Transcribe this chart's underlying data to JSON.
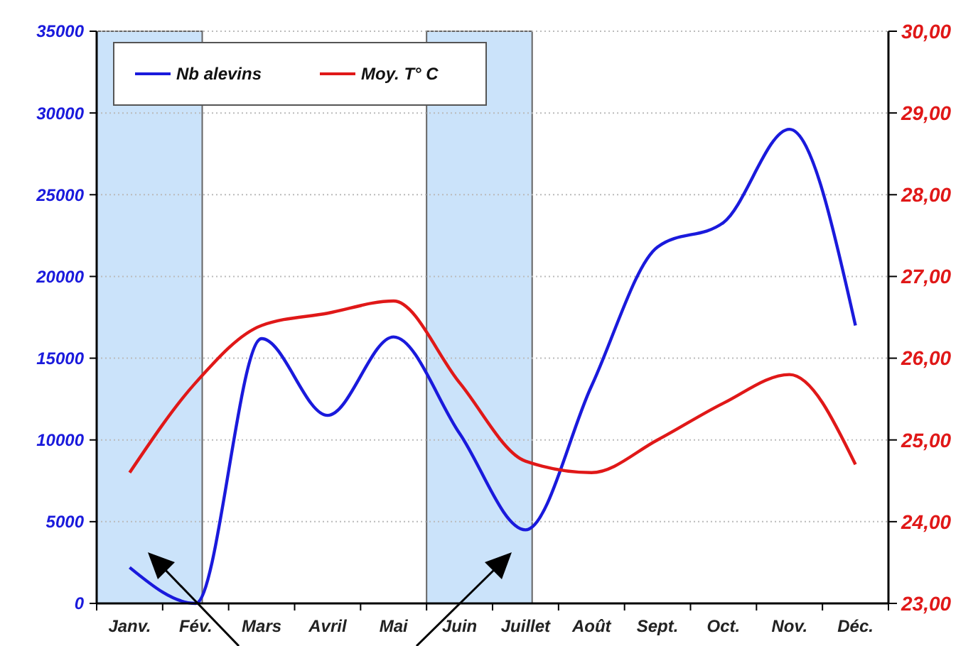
{
  "chart_data": {
    "type": "line",
    "categories": [
      "Janv.",
      "Fév.",
      "Mars",
      "Avril",
      "Mai",
      "Juin",
      "Juillet",
      "Août",
      "Sept.",
      "Oct.",
      "Nov.",
      "Déc."
    ],
    "series": [
      {
        "name": "Nb alevins",
        "color": "#1a1adc",
        "values": [
          2200,
          0,
          16200,
          11500,
          16300,
          10400,
          4500,
          13300,
          21800,
          23300,
          29000,
          17000
        ]
      },
      {
        "name": "Moy. T° C",
        "color": "#e01818",
        "axis": "y2",
        "values": [
          24.6,
          25.7,
          26.4,
          26.55,
          26.7,
          25.7,
          24.74,
          24.6,
          25.0,
          25.45,
          25.8,
          24.7
        ]
      }
    ],
    "ylim": [
      0,
      35000
    ],
    "yticks": [
      0,
      5000,
      10000,
      15000,
      20000,
      25000,
      30000,
      35000
    ],
    "y2lim": [
      23,
      30
    ],
    "y2ticks": [
      {
        "value": 23,
        "label": "23,00"
      },
      {
        "value": 24,
        "label": "24,00"
      },
      {
        "value": 25,
        "label": "25,00"
      },
      {
        "value": 26,
        "label": "26,00"
      },
      {
        "value": 27,
        "label": "27,00"
      },
      {
        "value": 28,
        "label": "28,00"
      },
      {
        "value": 29,
        "label": "29,00"
      },
      {
        "value": 30,
        "label": "30,00"
      }
    ],
    "bands": [
      {
        "axis": "x",
        "from": "Janv.",
        "to": "Fév.",
        "color": "#c6e0fa"
      },
      {
        "axis": "x",
        "from": "Juin",
        "to": "Juillet",
        "color": "#c6e0fa"
      }
    ],
    "grid": "y",
    "legend": "top left",
    "marker": "none",
    "line_style": "solid"
  }
}
